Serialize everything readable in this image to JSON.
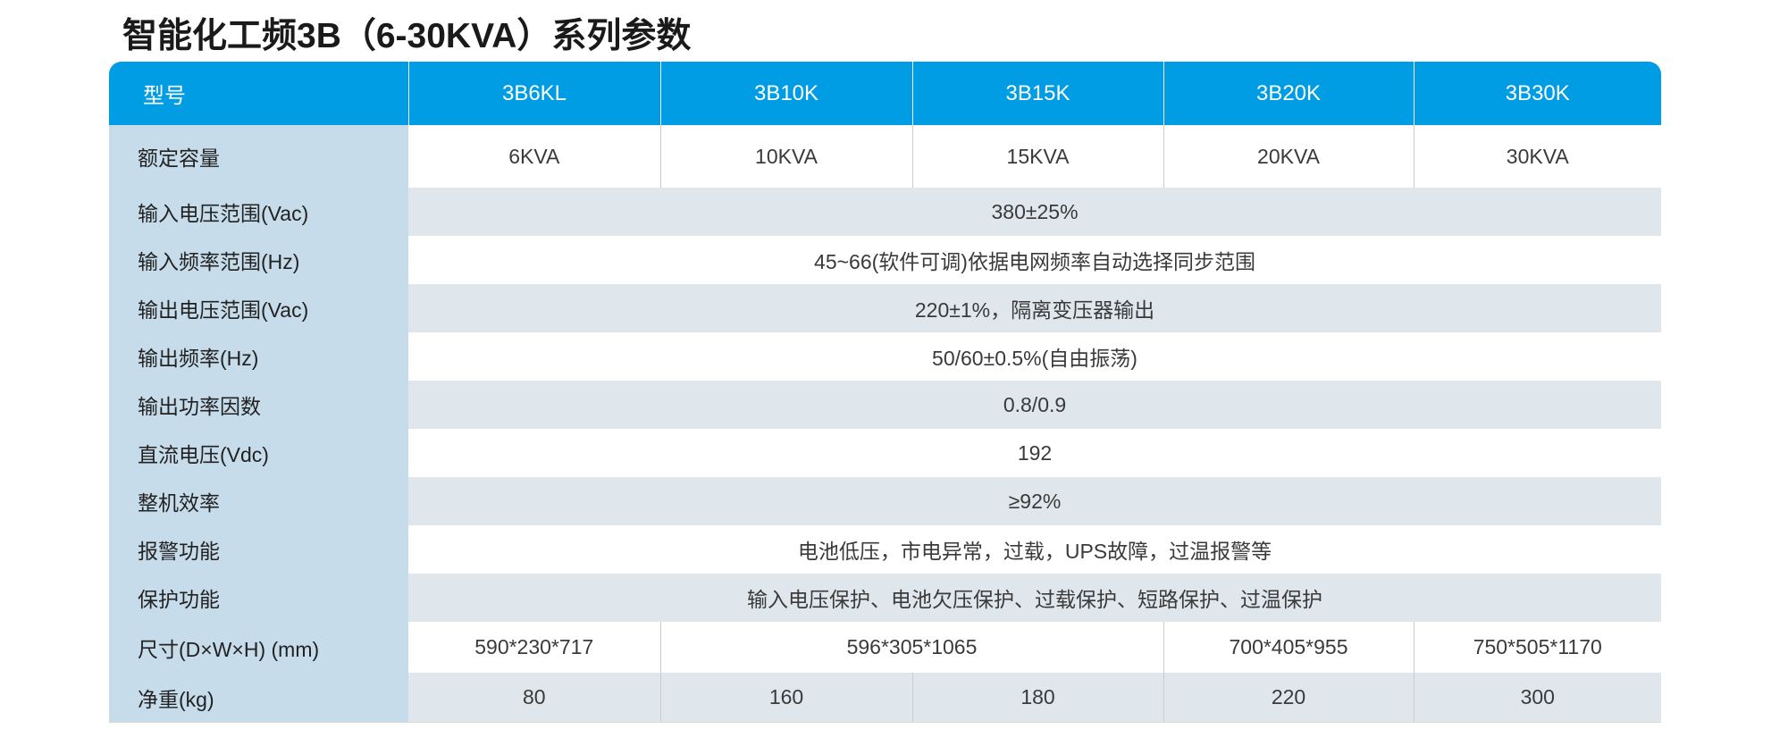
{
  "title": "智能化工频3B（6-30KVA）系列参数",
  "header": {
    "label": "型号",
    "models": [
      "3B6KL",
      "3B10K",
      "3B15K",
      "3B20K",
      "3B30K"
    ]
  },
  "rows": {
    "capacity": {
      "label": "额定容量",
      "values": [
        "6KVA",
        "10KVA",
        "15KVA",
        "20KVA",
        "30KVA"
      ]
    },
    "input_voltage": {
      "label": "输入电压范围(Vac)",
      "value": "380±25%"
    },
    "input_freq": {
      "label": "输入频率范围(Hz)",
      "value": "45~66(软件可调)依据电网频率自动选择同步范围"
    },
    "output_voltage": {
      "label": "输出电压范围(Vac)",
      "value": "220±1%，隔离变压器输出"
    },
    "output_freq": {
      "label": "输出频率(Hz)",
      "value": "50/60±0.5%(自由振荡)"
    },
    "power_factor": {
      "label": "输出功率因数",
      "value": "0.8/0.9"
    },
    "dc_voltage": {
      "label": "直流电压(Vdc)",
      "value": "192"
    },
    "efficiency": {
      "label": "整机效率",
      "value": "≥92%"
    },
    "alarm": {
      "label": "报警功能",
      "value": "电池低压，市电异常，过载，UPS故障，过温报警等"
    },
    "protection": {
      "label": "保护功能",
      "value": "输入电压保护、电池欠压保护、过载保护、短路保护、过温保护"
    },
    "dimensions": {
      "label": "尺寸(D×W×H) (mm)",
      "values": [
        "590*230*717",
        "596*305*1065",
        "700*405*955",
        "750*505*1170"
      ]
    },
    "weight": {
      "label": "净重(kg)",
      "values": [
        "80",
        "160",
        "180",
        "220",
        "300"
      ]
    }
  },
  "colors": {
    "header_bg": "#009de5",
    "label_bg": "#c7dcea",
    "stripe_bg": "#dfe6ec"
  }
}
